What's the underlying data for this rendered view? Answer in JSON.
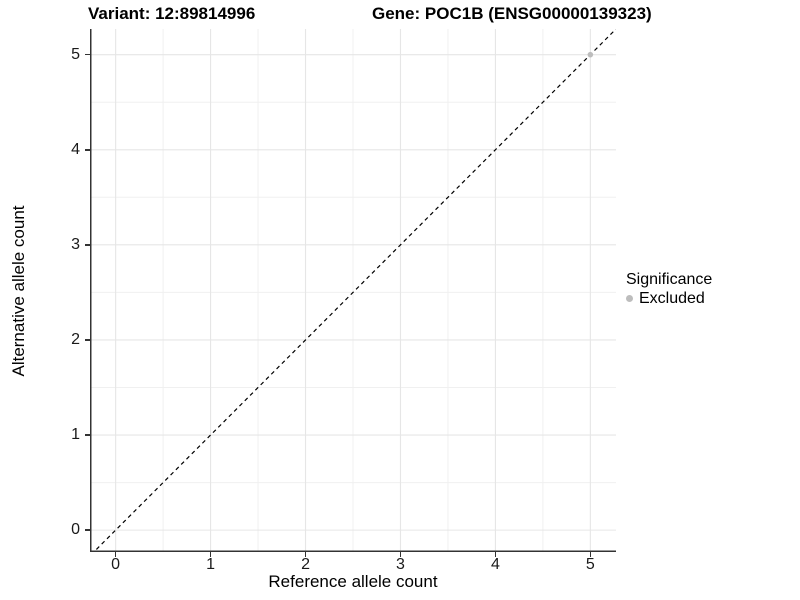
{
  "chart_data": {
    "type": "scatter",
    "titles": {
      "left": "Variant: 12:89814996",
      "right": "Gene: POC1B (ENSG00000139323)"
    },
    "xlabel": "Reference allele count",
    "ylabel": "Alternative allele count",
    "xlim": [
      -0.27,
      5.27
    ],
    "ylim": [
      -0.23,
      5.27
    ],
    "xticks": [
      0,
      1,
      2,
      3,
      4,
      5
    ],
    "yticks": [
      0,
      1,
      2,
      3,
      4,
      5
    ],
    "minor_ticks_x": [
      0.5,
      1.5,
      2.5,
      3.5,
      4.5
    ],
    "minor_ticks_y": [
      0.5,
      1.5,
      2.5,
      3.5,
      4.5
    ],
    "grid": true,
    "identity_line": {
      "slope": 1,
      "intercept": 0,
      "style": "dashed",
      "color": "#000000"
    },
    "series": [
      {
        "name": "Excluded",
        "color": "#bdbdbd",
        "points": [
          {
            "x": 5,
            "y": 5
          }
        ]
      }
    ],
    "legend": {
      "title": "Significance",
      "position": "right",
      "items": [
        {
          "label": "Excluded",
          "color": "#bdbdbd",
          "marker": "circle"
        }
      ]
    }
  },
  "colors": {
    "background": "#ffffff",
    "grid_major": "#e6e6e6",
    "grid_minor": "#f0f0f0",
    "axis_line": "#333333",
    "point": "#bdbdbd"
  }
}
